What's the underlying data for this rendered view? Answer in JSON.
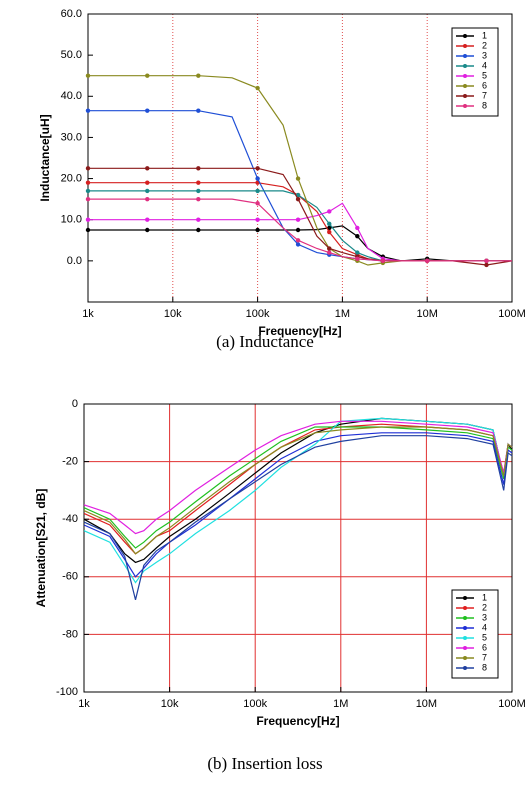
{
  "chart_data": [
    {
      "type": "line",
      "caption": "(a)  Inductance",
      "xlabel": "Frequency[Hz]",
      "ylabel": "Inductance[uH]",
      "xscale": "log",
      "grid": {
        "x": true,
        "y": false,
        "style": "dotted",
        "color": "#e05050"
      },
      "legend": "upper right",
      "marker": true,
      "xlim": [
        1000,
        100000000
      ],
      "xticks": [
        {
          "value": 1000,
          "label": "1k"
        },
        {
          "value": 10000,
          "label": "10k"
        },
        {
          "value": 100000,
          "label": "100k"
        },
        {
          "value": 1000000,
          "label": "1M"
        },
        {
          "value": 10000000,
          "label": "10M"
        },
        {
          "value": 100000000,
          "label": "100M"
        }
      ],
      "ylim": [
        -10,
        60
      ],
      "yticks": [
        {
          "value": 0,
          "label": "0.0"
        },
        {
          "value": 10,
          "label": "10.0"
        },
        {
          "value": 20,
          "label": "20.0"
        },
        {
          "value": 30,
          "label": "30.0"
        },
        {
          "value": 40,
          "label": "40.0"
        },
        {
          "value": 50,
          "label": "50.0"
        },
        {
          "value": 60,
          "label": "60.0"
        }
      ],
      "x": [
        1000,
        2000,
        5000,
        10000,
        20000,
        50000,
        100000,
        200000,
        300000,
        500000,
        700000,
        1000000,
        1500000,
        2000000,
        3000000,
        5000000,
        10000000,
        20000000,
        50000000,
        100000000
      ],
      "series": [
        {
          "name": "1",
          "color": "#000000",
          "values": [
            7.5,
            7.5,
            7.5,
            7.5,
            7.5,
            7.5,
            7.5,
            7.5,
            7.5,
            7.6,
            8,
            8.5,
            6,
            3,
            1,
            0,
            0.5,
            0,
            0,
            0
          ]
        },
        {
          "name": "2",
          "color": "#d62020",
          "values": [
            19,
            19,
            19,
            19,
            19,
            19,
            19,
            18,
            16,
            12,
            7,
            3,
            1.5,
            0.5,
            0,
            0,
            0,
            0,
            0,
            0
          ]
        },
        {
          "name": "3",
          "color": "#1f4fd6",
          "values": [
            36.5,
            36.5,
            36.5,
            36.5,
            36.5,
            35,
            20,
            8,
            4,
            2,
            1.5,
            1,
            0.5,
            0.3,
            0,
            0,
            0,
            0,
            0,
            0
          ]
        },
        {
          "name": "4",
          "color": "#1a8a8a",
          "values": [
            17,
            17,
            17,
            17,
            17,
            17,
            17,
            17,
            16,
            13,
            9,
            5,
            2,
            1,
            0,
            0,
            0,
            0,
            0,
            0
          ]
        },
        {
          "name": "5",
          "color": "#e020e0",
          "values": [
            10,
            10,
            10,
            10,
            10,
            10,
            10,
            10,
            10,
            11,
            12,
            14,
            8,
            3,
            0.5,
            0,
            0,
            0,
            0,
            0
          ]
        },
        {
          "name": "6",
          "color": "#8a8a20",
          "values": [
            45,
            45,
            45,
            45,
            45,
            44.5,
            42,
            33,
            20,
            8,
            3,
            1,
            0,
            -1,
            -0.5,
            0,
            0,
            0,
            0,
            0
          ]
        },
        {
          "name": "7",
          "color": "#8b1a1a",
          "values": [
            22.5,
            22.5,
            22.5,
            22.5,
            22.5,
            22.5,
            22.5,
            21,
            15,
            6,
            3,
            2,
            1,
            0.5,
            0,
            0,
            0,
            0,
            -1,
            0
          ]
        },
        {
          "name": "8",
          "color": "#e03080",
          "values": [
            15,
            15,
            15,
            15,
            15,
            15,
            14,
            8,
            5,
            3,
            2,
            1,
            0.5,
            0.3,
            0,
            0,
            0,
            0,
            0,
            0
          ]
        }
      ]
    },
    {
      "type": "line",
      "caption": "(b)  Insertion  loss",
      "xlabel": "Frequency[Hz]",
      "ylabel": "Attenuation[S21, dB]",
      "xscale": "log",
      "grid": {
        "x": true,
        "y": true,
        "style": "solid",
        "color": "#e03030"
      },
      "legend": "lower right",
      "marker": false,
      "xlim": [
        1000,
        100000000
      ],
      "xticks": [
        {
          "value": 1000,
          "label": "1k"
        },
        {
          "value": 10000,
          "label": "10k"
        },
        {
          "value": 100000,
          "label": "100k"
        },
        {
          "value": 1000000,
          "label": "1M"
        },
        {
          "value": 10000000,
          "label": "10M"
        },
        {
          "value": 100000000,
          "label": "100M"
        }
      ],
      "ylim": [
        -100,
        0
      ],
      "yticks": [
        -100,
        -80,
        -60,
        -40,
        -20,
        0
      ],
      "x": [
        1000,
        2000,
        3000,
        4000,
        5000,
        7000,
        10000,
        20000,
        50000,
        100000,
        200000,
        500000,
        1000000,
        3000000,
        10000000,
        30000000,
        60000000,
        80000000,
        90000000,
        100000000
      ],
      "series": [
        {
          "name": "1",
          "color": "#000000",
          "values": [
            -40,
            -45,
            -52,
            -55,
            -54,
            -50,
            -46,
            -40,
            -31,
            -24,
            -17,
            -10,
            -7,
            -5,
            -6,
            -7,
            -9,
            -25,
            -14,
            -16
          ]
        },
        {
          "name": "2",
          "color": "#e02020",
          "values": [
            -38,
            -42,
            -48,
            -52,
            -50,
            -46,
            -44,
            -37,
            -28,
            -21,
            -15,
            -9,
            -8,
            -7,
            -8,
            -9,
            -11,
            -24,
            -14,
            -15
          ]
        },
        {
          "name": "3",
          "color": "#20c020",
          "values": [
            -36,
            -40,
            -46,
            -50,
            -48,
            -44,
            -41,
            -34,
            -25,
            -19,
            -13,
            -8,
            -8,
            -8,
            -9,
            -10,
            -12,
            -26,
            -15,
            -16
          ]
        },
        {
          "name": "4",
          "color": "#1f2fd6",
          "values": [
            -42,
            -46,
            -54,
            -60,
            -57,
            -52,
            -48,
            -42,
            -33,
            -26,
            -19,
            -13,
            -11,
            -10,
            -10,
            -11,
            -13,
            -28,
            -16,
            -17
          ]
        },
        {
          "name": "5",
          "color": "#20e0e0",
          "values": [
            -44,
            -48,
            -56,
            -62,
            -58,
            -55,
            -52,
            -45,
            -37,
            -30,
            -22,
            -14,
            -6,
            -5,
            -6,
            -7,
            -9,
            -25,
            -14,
            -15
          ]
        },
        {
          "name": "6",
          "color": "#e020e0",
          "values": [
            -35,
            -38,
            -42,
            -45,
            -44,
            -40,
            -37,
            -30,
            -22,
            -16,
            -11,
            -7,
            -6,
            -6,
            -7,
            -8,
            -10,
            -24,
            -14,
            -15
          ]
        },
        {
          "name": "7",
          "color": "#8a8a20",
          "values": [
            -37,
            -41,
            -47,
            -52,
            -50,
            -46,
            -43,
            -36,
            -27,
            -21,
            -15,
            -10,
            -9,
            -8,
            -8,
            -9,
            -11,
            -25,
            -14,
            -15
          ]
        },
        {
          "name": "8",
          "color": "#2040a0",
          "values": [
            -41,
            -45,
            -53,
            -68,
            -56,
            -51,
            -48,
            -41,
            -33,
            -27,
            -21,
            -15,
            -13,
            -11,
            -11,
            -12,
            -14,
            -30,
            -17,
            -18
          ]
        }
      ]
    }
  ]
}
